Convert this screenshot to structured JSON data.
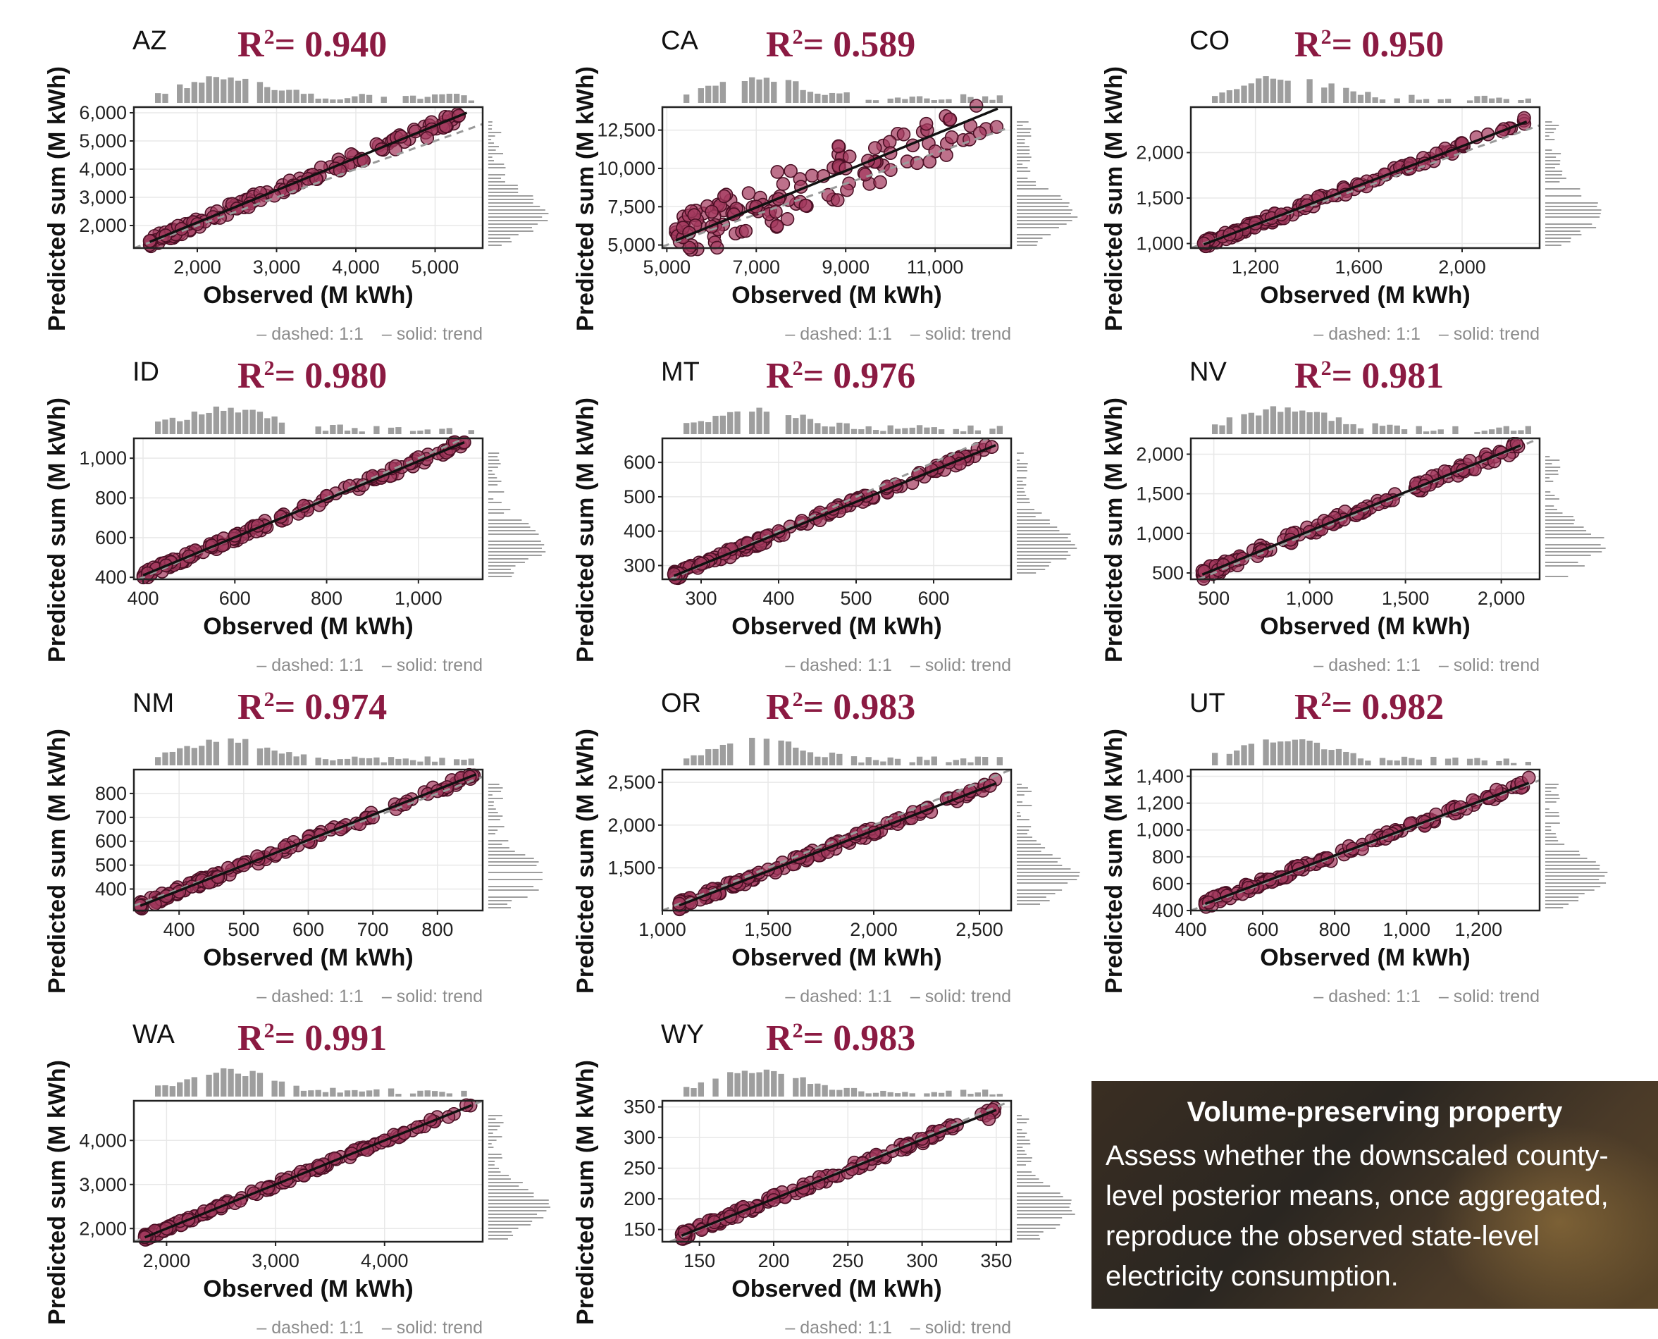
{
  "chart_data": [
    {
      "type": "scatter",
      "state": "AZ",
      "r2_label": "R",
      "r2_value": "= 0.940",
      "xlabel": "Observed (M kWh)",
      "ylabel": "Predicted sum (M kWh)",
      "xlim": [
        1200,
        5600
      ],
      "ylim": [
        1200,
        6200
      ],
      "xticks": [
        2000,
        3000,
        4000,
        5000
      ],
      "xtick_labels": [
        "2,000",
        "3,000",
        "4,000",
        "5,000"
      ],
      "yticks": [
        2000,
        3000,
        4000,
        5000,
        6000
      ],
      "ytick_labels": [
        "2,000",
        "3,000",
        "4,000",
        "5,000",
        "6,000"
      ],
      "trend": {
        "x": [
          1400,
          5400
        ],
        "y": [
          1420,
          6000
        ]
      },
      "range": [
        1400,
        5400
      ],
      "slope_dev": 0.04,
      "points": [
        [
          1400,
          1450
        ],
        [
          1600,
          1650
        ],
        [
          1800,
          1880
        ],
        [
          2000,
          2050
        ],
        [
          2200,
          2300
        ],
        [
          2500,
          2600
        ],
        [
          2800,
          2900
        ],
        [
          3200,
          3350
        ],
        [
          3500,
          3650
        ],
        [
          3800,
          3950
        ],
        [
          4100,
          4300
        ],
        [
          4500,
          4700
        ],
        [
          4900,
          5100
        ],
        [
          5300,
          5900
        ]
      ],
      "legend": [
        "– dashed: 1:1",
        "– solid: trend"
      ]
    },
    {
      "type": "scatter",
      "state": "CA",
      "r2_label": "R",
      "r2_value": "= 0.589",
      "xlabel": "Observed (M kWh)",
      "ylabel": "Predicted sum (M kWh)",
      "xlim": [
        4900,
        12700
      ],
      "ylim": [
        4800,
        14000
      ],
      "xticks": [
        5000,
        7000,
        9000,
        11000
      ],
      "xtick_labels": [
        "5,000",
        "7,000",
        "9,000",
        "11,000"
      ],
      "yticks": [
        5000,
        7500,
        10000,
        12500
      ],
      "ytick_labels": [
        "5,000",
        "7,500",
        "10,000",
        "12,500"
      ],
      "trend": {
        "x": [
          5200,
          12400
        ],
        "y": [
          5300,
          13900
        ]
      },
      "range": [
        5200,
        12400
      ],
      "slope_dev": 0.2,
      "points": [
        [
          5500,
          5800
        ],
        [
          6000,
          6200
        ],
        [
          6500,
          7000
        ],
        [
          7000,
          7500
        ],
        [
          7500,
          8000
        ],
        [
          8000,
          8800
        ],
        [
          8500,
          9500
        ],
        [
          9000,
          10000
        ],
        [
          9500,
          10500
        ],
        [
          10000,
          11000
        ],
        [
          10500,
          11500
        ],
        [
          12000,
          12300
        ]
      ],
      "legend": [
        "– dashed: 1:1",
        "– solid: trend"
      ]
    },
    {
      "type": "scatter",
      "state": "CO",
      "r2_label": "R",
      "r2_value": "= 0.950",
      "xlabel": "Observed (M kWh)",
      "ylabel": "Predicted sum (M kWh)",
      "xlim": [
        950,
        2300
      ],
      "ylim": [
        950,
        2500
      ],
      "xticks": [
        1200,
        1600,
        2000
      ],
      "xtick_labels": [
        "1,200",
        "1,600",
        "2,000"
      ],
      "yticks": [
        1000,
        1500,
        2000
      ],
      "ytick_labels": [
        "1,000",
        "1,500",
        "2,000"
      ],
      "trend": {
        "x": [
          1000,
          2250
        ],
        "y": [
          990,
          2340
        ]
      },
      "range": [
        1000,
        2250
      ],
      "slope_dev": 0.03,
      "points": [
        [
          1000,
          1000
        ],
        [
          1100,
          1100
        ],
        [
          1200,
          1220
        ],
        [
          1300,
          1320
        ],
        [
          1400,
          1420
        ],
        [
          1500,
          1530
        ],
        [
          1600,
          1640
        ],
        [
          1700,
          1760
        ],
        [
          1800,
          1880
        ],
        [
          1900,
          1990
        ],
        [
          2000,
          2100
        ],
        [
          2100,
          2200
        ],
        [
          2240,
          2380
        ]
      ],
      "legend": [
        "– dashed: 1:1",
        "– solid: trend"
      ]
    },
    {
      "type": "scatter",
      "state": "ID",
      "r2_label": "R",
      "r2_value": "= 0.980",
      "xlabel": "Observed (M kWh)",
      "ylabel": "Predicted sum (M kWh)",
      "xlim": [
        380,
        1140
      ],
      "ylim": [
        390,
        1100
      ],
      "xticks": [
        400,
        600,
        800,
        1000
      ],
      "xtick_labels": [
        "400",
        "600",
        "800",
        "1,000"
      ],
      "yticks": [
        400,
        600,
        800,
        1000
      ],
      "ytick_labels": [
        "400",
        "600",
        "800",
        "1,000"
      ],
      "trend": {
        "x": [
          400,
          1100
        ],
        "y": [
          410,
          1080
        ]
      },
      "range": [
        400,
        1100
      ],
      "slope_dev": 0.03,
      "points": [
        [
          410,
          420
        ],
        [
          450,
          460
        ],
        [
          500,
          505
        ],
        [
          550,
          560
        ],
        [
          600,
          610
        ],
        [
          650,
          660
        ],
        [
          700,
          705
        ],
        [
          750,
          760
        ],
        [
          800,
          810
        ],
        [
          850,
          860
        ],
        [
          900,
          910
        ],
        [
          950,
          960
        ],
        [
          1000,
          1005
        ],
        [
          1100,
          1080
        ]
      ],
      "legend": [
        "– dashed: 1:1",
        "– solid: trend"
      ]
    },
    {
      "type": "scatter",
      "state": "MT",
      "r2_label": "R",
      "r2_value": "= 0.976",
      "xlabel": "Observed (M kWh)",
      "ylabel": "Predicted sum (M kWh)",
      "xlim": [
        250,
        700
      ],
      "ylim": [
        260,
        670
      ],
      "xticks": [
        300,
        400,
        500,
        600
      ],
      "xtick_labels": [
        "300",
        "400",
        "500",
        "600"
      ],
      "yticks": [
        300,
        400,
        500,
        600
      ],
      "ytick_labels": [
        "300",
        "400",
        "500",
        "600"
      ],
      "trend": {
        "x": [
          265,
          680
        ],
        "y": [
          270,
          650
        ]
      },
      "range": [
        265,
        680
      ],
      "slope_dev": 0.03,
      "points": [
        [
          265,
          275
        ],
        [
          300,
          305
        ],
        [
          330,
          335
        ],
        [
          360,
          365
        ],
        [
          400,
          400
        ],
        [
          430,
          430
        ],
        [
          470,
          465
        ],
        [
          500,
          490
        ],
        [
          540,
          530
        ],
        [
          580,
          565
        ],
        [
          620,
          600
        ],
        [
          675,
          645
        ]
      ],
      "legend": [
        "– dashed: 1:1",
        "– solid: trend"
      ]
    },
    {
      "type": "scatter",
      "state": "NV",
      "r2_label": "R",
      "r2_value": "= 0.981",
      "xlabel": "Observed (M kWh)",
      "ylabel": "Predicted sum (M kWh)",
      "xlim": [
        380,
        2200
      ],
      "ylim": [
        420,
        2200
      ],
      "xticks": [
        500,
        1000,
        1500,
        2000
      ],
      "xtick_labels": [
        "500",
        "1,000",
        "1,500",
        "2,000"
      ],
      "yticks": [
        500,
        1000,
        1500,
        2000
      ],
      "ytick_labels": [
        "500",
        "1,000",
        "1,500",
        "2,000"
      ],
      "trend": {
        "x": [
          440,
          2100
        ],
        "y": [
          480,
          2110
        ]
      },
      "range": [
        440,
        2100
      ],
      "slope_dev": 0.04,
      "points": [
        [
          450,
          520
        ],
        [
          550,
          600
        ],
        [
          650,
          680
        ],
        [
          750,
          780
        ],
        [
          900,
          920
        ],
        [
          1000,
          1020
        ],
        [
          1100,
          1130
        ],
        [
          1250,
          1250
        ],
        [
          1400,
          1420
        ],
        [
          1600,
          1600
        ],
        [
          1800,
          1800
        ],
        [
          2000,
          2020
        ],
        [
          2080,
          2130
        ]
      ],
      "legend": [
        "– dashed: 1:1",
        "– solid: trend"
      ]
    },
    {
      "type": "scatter",
      "state": "NM",
      "r2_label": "R",
      "r2_value": "= 0.974",
      "xlabel": "Observed (M kWh)",
      "ylabel": "Predicted sum (M kWh)",
      "xlim": [
        330,
        870
      ],
      "ylim": [
        310,
        900
      ],
      "xticks": [
        400,
        500,
        600,
        700,
        800
      ],
      "xtick_labels": [
        "400",
        "500",
        "600",
        "700",
        "800"
      ],
      "yticks": [
        400,
        500,
        600,
        700,
        800
      ],
      "ytick_labels": [
        "400",
        "500",
        "600",
        "700",
        "800"
      ],
      "trend": {
        "x": [
          340,
          860
        ],
        "y": [
          330,
          880
        ]
      },
      "range": [
        340,
        860
      ],
      "slope_dev": 0.03,
      "points": [
        [
          340,
          330
        ],
        [
          380,
          370
        ],
        [
          420,
          410
        ],
        [
          460,
          450
        ],
        [
          500,
          500
        ],
        [
          550,
          545
        ],
        [
          600,
          600
        ],
        [
          650,
          650
        ],
        [
          700,
          700
        ],
        [
          750,
          755
        ],
        [
          800,
          810
        ],
        [
          850,
          870
        ]
      ],
      "legend": [
        "– dashed: 1:1",
        "– solid: trend"
      ]
    },
    {
      "type": "scatter",
      "state": "OR",
      "r2_label": "R",
      "r2_value": "= 0.983",
      "xlabel": "Observed (M kWh)",
      "ylabel": "Predicted sum (M kWh)",
      "xlim": [
        1000,
        2650
      ],
      "ylim": [
        1000,
        2650
      ],
      "xticks": [
        1000,
        1500,
        2000,
        2500
      ],
      "xtick_labels": [
        "1,000",
        "1,500",
        "2,000",
        "2,500"
      ],
      "yticks": [
        1500,
        2000,
        2500
      ],
      "ytick_labels": [
        "1,500",
        "2,000",
        "2,500"
      ],
      "trend": {
        "x": [
          1080,
          2580
        ],
        "y": [
          1060,
          2490
        ]
      },
      "range": [
        1080,
        2580
      ],
      "slope_dev": 0.03,
      "points": [
        [
          1080,
          1080
        ],
        [
          1200,
          1190
        ],
        [
          1350,
          1330
        ],
        [
          1500,
          1480
        ],
        [
          1650,
          1620
        ],
        [
          1800,
          1770
        ],
        [
          1950,
          1920
        ],
        [
          2100,
          2060
        ],
        [
          2250,
          2200
        ],
        [
          2400,
          2340
        ],
        [
          2550,
          2460
        ]
      ],
      "legend": [
        "– dashed: 1:1",
        "– solid: trend"
      ]
    },
    {
      "type": "scatter",
      "state": "UT",
      "r2_label": "R",
      "r2_value": "= 0.982",
      "xlabel": "Observed (M kWh)",
      "ylabel": "Predicted sum (M kWh)",
      "xlim": [
        400,
        1370
      ],
      "ylim": [
        400,
        1450
      ],
      "xticks": [
        400,
        600,
        800,
        1000,
        1200
      ],
      "xtick_labels": [
        "400",
        "600",
        "800",
        "1,000",
        "1,200"
      ],
      "yticks": [
        400,
        600,
        800,
        1000,
        1200,
        1400
      ],
      "ytick_labels": [
        "400",
        "600",
        "800",
        "1,000",
        "1,200",
        "1,400"
      ],
      "trend": {
        "x": [
          440,
          1340
        ],
        "y": [
          450,
          1350
        ]
      },
      "range": [
        440,
        1340
      ],
      "slope_dev": 0.03,
      "points": [
        [
          450,
          460
        ],
        [
          500,
          510
        ],
        [
          560,
          570
        ],
        [
          620,
          630
        ],
        [
          700,
          710
        ],
        [
          780,
          790
        ],
        [
          850,
          860
        ],
        [
          950,
          960
        ],
        [
          1050,
          1060
        ],
        [
          1150,
          1170
        ],
        [
          1250,
          1300
        ],
        [
          1340,
          1390
        ]
      ],
      "legend": [
        "– dashed: 1:1",
        "– solid: trend"
      ]
    },
    {
      "type": "scatter",
      "state": "WA",
      "r2_label": "R",
      "r2_value": "= 0.991",
      "xlabel": "Observed (M kWh)",
      "ylabel": "Predicted sum (M kWh)",
      "xlim": [
        1700,
        4900
      ],
      "ylim": [
        1700,
        4900
      ],
      "xticks": [
        2000,
        3000,
        4000
      ],
      "xtick_labels": [
        "2,000",
        "3,000",
        "4,000"
      ],
      "yticks": [
        2000,
        3000,
        4000
      ],
      "ytick_labels": [
        "2,000",
        "3,000",
        "4,000"
      ],
      "trend": {
        "x": [
          1800,
          4800
        ],
        "y": [
          1800,
          4800
        ]
      },
      "range": [
        1800,
        4800
      ],
      "slope_dev": 0.02,
      "points": [
        [
          1800,
          1800
        ],
        [
          2000,
          2000
        ],
        [
          2200,
          2200
        ],
        [
          2500,
          2500
        ],
        [
          2800,
          2800
        ],
        [
          3100,
          3100
        ],
        [
          3400,
          3400
        ],
        [
          3700,
          3700
        ],
        [
          4000,
          4000
        ],
        [
          4300,
          4300
        ],
        [
          4750,
          4800
        ]
      ],
      "legend": [
        "– dashed: 1:1",
        "– solid: trend"
      ]
    },
    {
      "type": "scatter",
      "state": "WY",
      "r2_label": "R",
      "r2_value": "= 0.983",
      "xlabel": "Observed (M kWh)",
      "ylabel": "Predicted sum (M kWh)",
      "xlim": [
        125,
        360
      ],
      "ylim": [
        130,
        360
      ],
      "xticks": [
        150,
        200,
        250,
        300,
        350
      ],
      "xtick_labels": [
        "150",
        "200",
        "250",
        "300",
        "350"
      ],
      "yticks": [
        150,
        200,
        250,
        300,
        350
      ],
      "ytick_labels": [
        "150",
        "200",
        "250",
        "300",
        "350"
      ],
      "trend": {
        "x": [
          138,
          350
        ],
        "y": [
          140,
          345
        ]
      },
      "range": [
        138,
        350
      ],
      "slope_dev": 0.03,
      "points": [
        [
          140,
          145
        ],
        [
          160,
          162
        ],
        [
          180,
          180
        ],
        [
          200,
          198
        ],
        [
          220,
          218
        ],
        [
          240,
          238
        ],
        [
          260,
          258
        ],
        [
          280,
          278
        ],
        [
          300,
          298
        ],
        [
          320,
          318
        ],
        [
          340,
          338
        ],
        [
          345,
          330
        ]
      ],
      "legend": [
        "– dashed: 1:1",
        "– solid: trend"
      ]
    }
  ],
  "colors": {
    "point_fill": "#a33a5e",
    "point_stroke": "#4a0f24",
    "r2_text": "#8b1a42",
    "hist": "#9e9e9e",
    "grid": "#e8e8e8"
  },
  "note_box": {
    "title": "Volume-preserving property",
    "lines": [
      "Assess whether the downscaled county-",
      "level posterior means, once aggregated,",
      "reproduce the observed state-level",
      "electricity consumption."
    ]
  }
}
